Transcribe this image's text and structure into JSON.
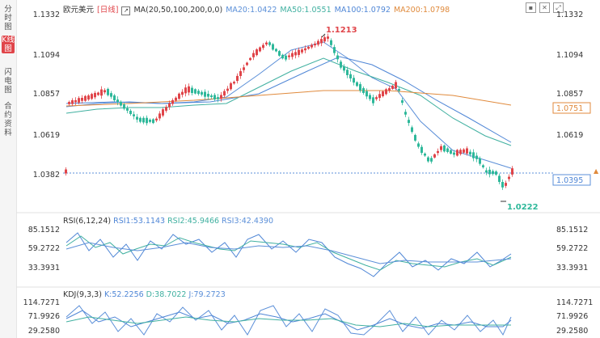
{
  "tabs": [
    {
      "label": "分时图",
      "active": false
    },
    {
      "label": "K线图",
      "active": true
    },
    {
      "label": "闪电图",
      "active": false
    },
    {
      "label": "合约资料",
      "active": false
    }
  ],
  "main": {
    "symbol": "欧元美元",
    "period": "[日线]",
    "ma_label": "MA(20,50,100,200,0,0)",
    "ma20": "MA20:1.0422",
    "ma50": "MA50:1.0551",
    "ma100": "MA100:1.0792",
    "ma200": "MA200:1.0798",
    "y_ticks": [
      "1.1332",
      "1.1094",
      "1.0857",
      "1.0619",
      "1.0382"
    ],
    "y_tick_values": [
      1.1332,
      1.1094,
      1.0857,
      1.0619,
      1.0382
    ],
    "current_price": "1.0395",
    "ma200_tag": "1.0751",
    "high_label": "1.1213",
    "low_label": "1.0222",
    "colors": {
      "up": "#e0454a",
      "down": "#2eb89a",
      "ma20": "#5b8fd8",
      "ma50": "#40b0a0",
      "ma100": "#4f86d6",
      "ma200": "#e08a3c"
    }
  },
  "rsi": {
    "label": "RSI(6,12,24)",
    "rsi1": "RSI1:53.1143",
    "rsi2": "RSI2:45.9466",
    "rsi3": "RSI3:42.4390",
    "y_ticks": [
      "85.1512",
      "59.2722",
      "33.3931"
    ]
  },
  "kdj": {
    "label": "KDJ(9,3,3)",
    "k": "K:52.2256",
    "d": "D:38.7022",
    "j": "J:79.2723",
    "y_ticks": [
      "114.7271",
      "71.9926",
      "29.2580"
    ]
  },
  "icons": [
    "stop-icon",
    "delete-icon",
    "expand-icon"
  ]
}
